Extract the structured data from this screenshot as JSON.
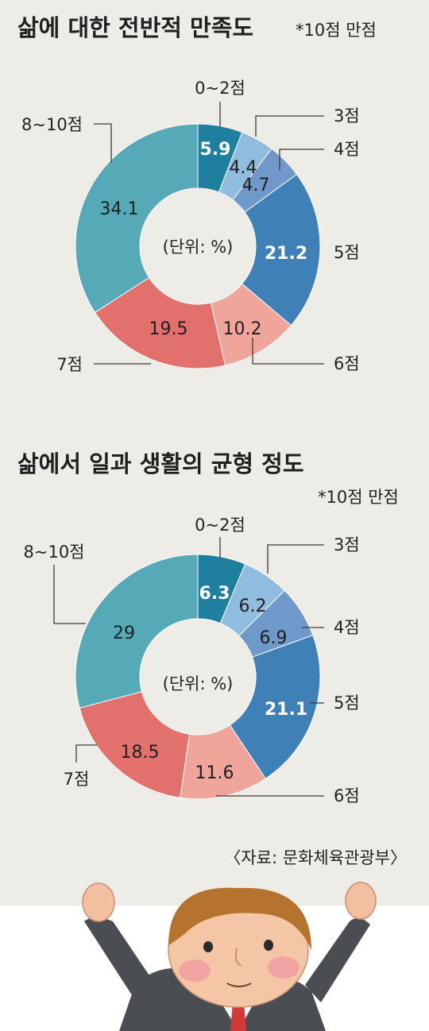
{
  "colors": {
    "bg": "#eeece7",
    "slice": [
      "#1e7f9e",
      "#8fbcdf",
      "#6f99cb",
      "#3f80b6",
      "#f0a59b",
      "#e2706c",
      "#56a9b7"
    ]
  },
  "source": "〈자료: 문화체육관광부〉",
  "illustration": {
    "icon": "cheering-man-illustration"
  },
  "chart_data": [
    {
      "type": "pie",
      "title": "삶에 대한 전반적 만족도",
      "note": "*10점 만점",
      "unit_label": "(단위: %)",
      "categories": [
        "0~2점",
        "3점",
        "4점",
        "5점",
        "6점",
        "7점",
        "8~10점"
      ],
      "values": [
        5.9,
        4.4,
        4.7,
        21.2,
        10.2,
        19.5,
        34.1
      ],
      "value_labels": [
        "5.9",
        "4.4",
        "4.7",
        "21.2",
        "10.2",
        "19.5",
        "34.1"
      ],
      "legend": "none"
    },
    {
      "type": "pie",
      "title": "삶에서 일과 생활의 균형 정도",
      "note": "*10점 만점",
      "unit_label": "(단위: %)",
      "categories": [
        "0~2점",
        "3점",
        "4점",
        "5점",
        "6점",
        "7점",
        "8~10점"
      ],
      "values": [
        6.3,
        6.2,
        6.9,
        21.1,
        11.6,
        18.5,
        29
      ],
      "value_labels": [
        "6.3",
        "6.2",
        "6.9",
        "21.1",
        "11.6",
        "18.5",
        "29"
      ],
      "legend": "none"
    }
  ]
}
